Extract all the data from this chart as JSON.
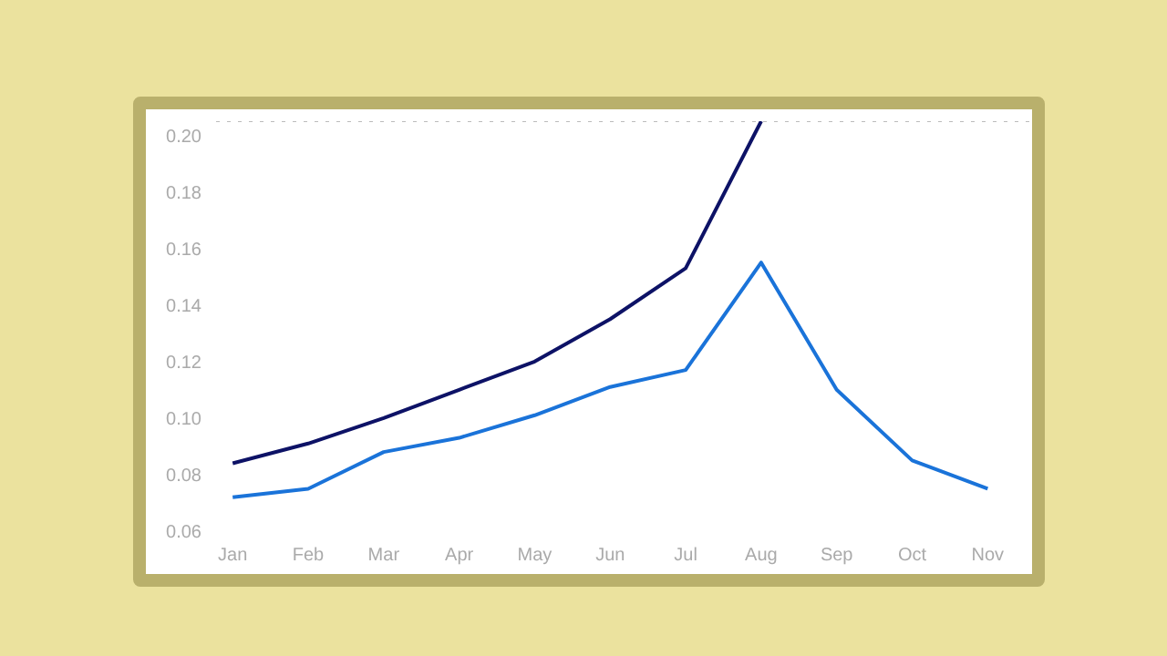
{
  "chart_data": {
    "type": "line",
    "categories": [
      "Jan",
      "Feb",
      "Mar",
      "Apr",
      "May",
      "Jun",
      "Jul",
      "Aug",
      "Sep",
      "Oct",
      "Nov"
    ],
    "series": [
      {
        "color": "#0d1266",
        "values": [
          0.084,
          0.091,
          0.1,
          0.11,
          0.12,
          0.135,
          0.153,
          0.205,
          null,
          null,
          null
        ]
      },
      {
        "color": "#1a73d9",
        "values": [
          0.072,
          0.075,
          0.088,
          0.093,
          0.101,
          0.111,
          0.117,
          0.155,
          0.11,
          0.085,
          0.075
        ]
      }
    ],
    "ylim": [
      0.06,
      0.205
    ],
    "yticks": [
      {
        "value": 0.06,
        "label": "0.06"
      },
      {
        "value": 0.08,
        "label": "0.08"
      },
      {
        "value": 0.1,
        "label": "0.10"
      },
      {
        "value": 0.12,
        "label": "0.12"
      },
      {
        "value": 0.14,
        "label": "0.14"
      },
      {
        "value": 0.16,
        "label": "0.16"
      },
      {
        "value": 0.18,
        "label": "0.18"
      },
      {
        "value": 0.2,
        "label": "0.20"
      }
    ],
    "ref_lines": [
      {
        "axis": "y",
        "value": 0.205,
        "color": "#bbbbbb",
        "line_style": "dotted"
      }
    ],
    "grid": false,
    "marker": "none",
    "line_style": "solid"
  }
}
